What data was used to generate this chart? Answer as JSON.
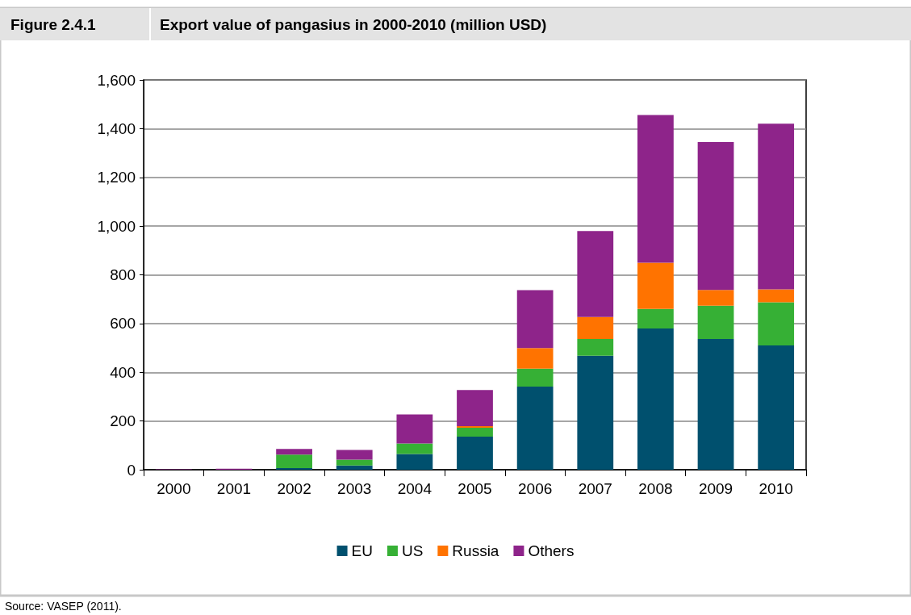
{
  "chart_data": {
    "type": "bar",
    "subtitle": "Figure 2.4.1",
    "title": "Export value of pangasius in 2000-2010 (million USD)",
    "categories": [
      "2000",
      "2001",
      "2002",
      "2003",
      "2004",
      "2005",
      "2006",
      "2007",
      "2008",
      "2009",
      "2010"
    ],
    "stacked": true,
    "series": [
      {
        "name": "EU",
        "color": "#00506e",
        "values": [
          0,
          0,
          7,
          17,
          65,
          136,
          341,
          468,
          580,
          537,
          510
        ]
      },
      {
        "name": "US",
        "color": "#36b035",
        "values": [
          0,
          0,
          55,
          24,
          43,
          36,
          74,
          69,
          80,
          136,
          177
        ]
      },
      {
        "name": "Russia",
        "color": "#ff7300",
        "values": [
          0,
          0,
          0,
          0,
          0,
          7,
          84,
          90,
          190,
          65,
          53
        ]
      },
      {
        "name": "Others",
        "color": "#8e248a",
        "values": [
          2,
          4,
          23,
          40,
          119,
          148,
          238,
          353,
          606,
          607,
          680
        ]
      }
    ],
    "ylim": [
      0,
      1600
    ],
    "yticks": [
      0,
      200,
      400,
      600,
      800,
      {
        "value": 1000,
        "label": "1,000"
      },
      {
        "value": 1200,
        "label": "1,200"
      },
      {
        "value": 1400,
        "label": "1,400"
      },
      {
        "value": 1600,
        "label": "1,600"
      }
    ],
    "grid": "y",
    "legend": "bottom",
    "annotations": [
      "Source: VASEP (2011)."
    ]
  }
}
